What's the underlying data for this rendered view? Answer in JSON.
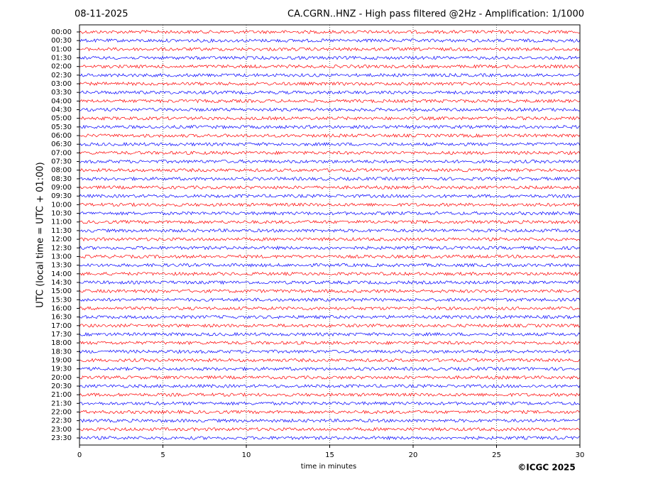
{
  "chart_data": {
    "type": "helicorder",
    "date": "08-11-2025",
    "title": "CA.CGRN..HNZ - High pass filtered @2Hz - Amplification: 1/1000",
    "y_label": "UTC (local time = UTC + 01:00)",
    "x_label": "time in minutes",
    "copyright": "©ICGC 2025",
    "categories": [
      "00:00",
      "00:30",
      "01:00",
      "01:30",
      "02:00",
      "02:30",
      "03:00",
      "03:30",
      "04:00",
      "04:30",
      "05:00",
      "05:30",
      "06:00",
      "06:30",
      "07:00",
      "07:30",
      "08:00",
      "08:30",
      "09:00",
      "09:30",
      "10:00",
      "10:30",
      "11:00",
      "11:30",
      "12:00",
      "12:30",
      "13:00",
      "13:30",
      "14:00",
      "14:30",
      "15:00",
      "15:30",
      "16:00",
      "16:30",
      "17:00",
      "17:30",
      "18:00",
      "18:30",
      "19:00",
      "19:30",
      "20:00",
      "20:30",
      "21:00",
      "21:30",
      "22:00",
      "22:30",
      "23:00",
      "23:30"
    ],
    "colors": [
      "#ff0000",
      "#0000ff"
    ],
    "xlim": [
      0,
      30
    ],
    "xticks": [
      0,
      5,
      10,
      15,
      20,
      25,
      30
    ],
    "grid": true
  }
}
